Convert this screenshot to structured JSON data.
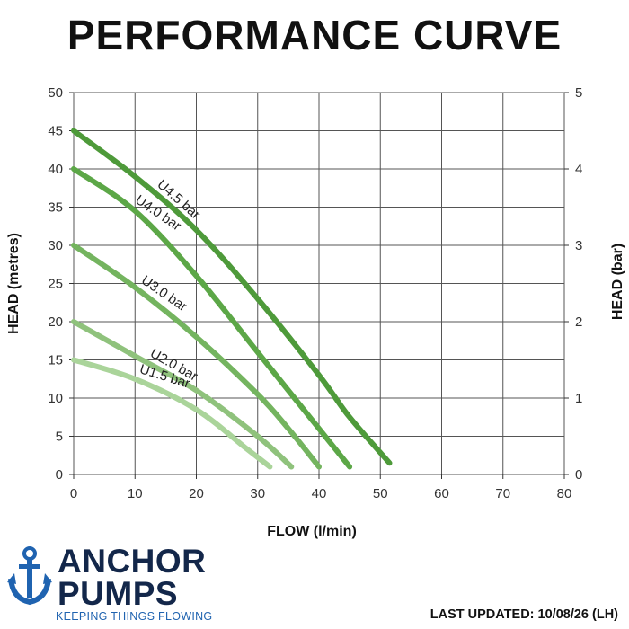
{
  "title": "PERFORMANCE CURVE",
  "chart_data": {
    "type": "line",
    "xlabel": "FLOW (l/min)",
    "ylabel": "HEAD (metres)",
    "y2label": "HEAD (bar)",
    "xlim": [
      0,
      80
    ],
    "ylim": [
      0,
      50
    ],
    "y2lim": [
      0,
      5
    ],
    "xticks": [
      0,
      10,
      20,
      30,
      40,
      50,
      60,
      70,
      80
    ],
    "yticks": [
      0,
      5,
      10,
      15,
      20,
      25,
      30,
      35,
      40,
      45,
      50
    ],
    "y2ticks": [
      0,
      1,
      2,
      3,
      4,
      5
    ],
    "grid": true,
    "series": [
      {
        "name": "U4.5 bar",
        "color": "#4e9a3a",
        "x": [
          0,
          10,
          20,
          30,
          40,
          45,
          51.5
        ],
        "y": [
          45,
          39,
          32,
          23,
          13,
          7.5,
          1.5
        ]
      },
      {
        "name": "U4.0 bar",
        "color": "#5ca747",
        "x": [
          0,
          10,
          20,
          30,
          40,
          45
        ],
        "y": [
          40,
          34.5,
          26,
          16,
          6,
          1
        ]
      },
      {
        "name": "U3.0 bar",
        "color": "#74b45f",
        "x": [
          0,
          10,
          20,
          30,
          35,
          40
        ],
        "y": [
          30,
          24.5,
          18,
          10.5,
          6,
          1
        ]
      },
      {
        "name": "U2.0 bar",
        "color": "#8fc27c",
        "x": [
          0,
          10,
          20,
          30,
          35.5
        ],
        "y": [
          20,
          15.5,
          11,
          5,
          1
        ]
      },
      {
        "name": "U1.5 bar",
        "color": "#aad49a",
        "x": [
          0,
          10,
          20,
          28,
          32
        ],
        "y": [
          15,
          12.5,
          8.5,
          3.5,
          1
        ]
      }
    ]
  },
  "logo": {
    "line1": "ANCHOR",
    "line2": "PUMPS",
    "tagline": "KEEPING THINGS FLOWING"
  },
  "last_updated": "LAST UPDATED: 10/08/26 (LH)"
}
